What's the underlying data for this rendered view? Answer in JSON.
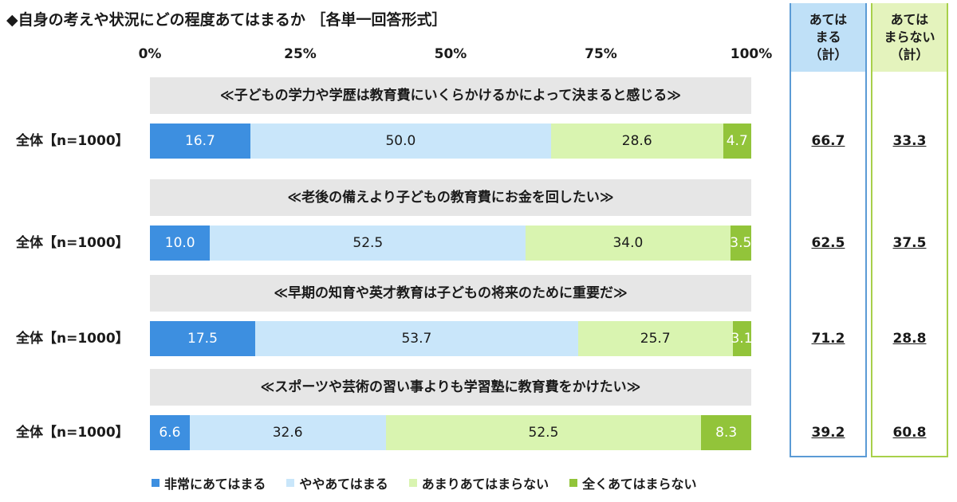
{
  "title": "◆自身の考えや状況にどの程度あてはまるか ［各単一回答形式］",
  "colors": {
    "very": "#3d8fe0",
    "somewhat": "#c9e6fa",
    "not_much": "#d9f4b0",
    "not_at_all": "#92c43a"
  },
  "chart_data": {
    "type": "bar",
    "orientation": "horizontal",
    "stacked": true,
    "xlim": [
      0,
      100
    ],
    "ticks": [
      "0%",
      "25%",
      "50%",
      "75%",
      "100%"
    ],
    "series_names": [
      "非常にあてはまる",
      "ややあてはまる",
      "あまりあてはまらない",
      "全くあてはまらない"
    ],
    "rows": [
      {
        "question": "≪子どもの学力や学歴は教育費にいくらかけるかによって決まると感じる≫",
        "label": "全体【n=1000】",
        "values": [
          16.7,
          50.0,
          28.6,
          4.7
        ],
        "value_labels": [
          "16.7",
          "50.0",
          "28.6",
          "4.7"
        ],
        "applies_total": "66.7",
        "not_applies_total": "33.3"
      },
      {
        "question": "≪老後の備えより子どもの教育費にお金を回したい≫",
        "label": "全体【n=1000】",
        "values": [
          10.0,
          52.5,
          34.0,
          3.5
        ],
        "value_labels": [
          "10.0",
          "52.5",
          "34.0",
          "3.5"
        ],
        "applies_total": "62.5",
        "not_applies_total": "37.5"
      },
      {
        "question": "≪早期の知育や英才教育は子どもの将来のために重要だ≫",
        "label": "全体【n=1000】",
        "values": [
          17.5,
          53.7,
          25.7,
          3.1
        ],
        "value_labels": [
          "17.5",
          "53.7",
          "25.7",
          "3.1"
        ],
        "applies_total": "71.2",
        "not_applies_total": "28.8"
      },
      {
        "question": "≪スポーツや芸術の習い事よりも学習塾に教育費をかけたい≫",
        "label": "全体【n=1000】",
        "values": [
          6.6,
          32.6,
          52.5,
          8.3
        ],
        "value_labels": [
          "6.6",
          "32.6",
          "52.5",
          "8.3"
        ],
        "applies_total": "39.2",
        "not_applies_total": "60.8"
      }
    ]
  },
  "side_headers": {
    "applies": "あては\nまる\n（計）",
    "not_applies": "あては\nまらない\n（計）"
  },
  "legend": [
    "非常にあてはまる",
    "ややあてはまる",
    "あまりあてはまらない",
    "全くあてはまらない"
  ]
}
